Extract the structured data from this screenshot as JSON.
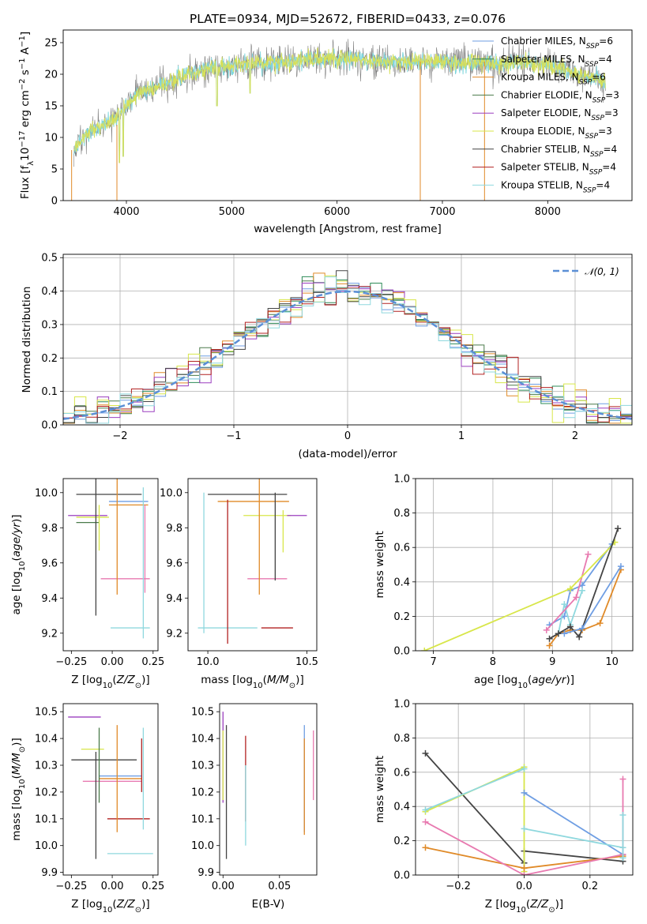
{
  "figure": {
    "title": "PLATE=0934, MJD=52672, FIBERID=0433, z=0.076"
  },
  "models": [
    {
      "label": "Chabrier MILES, N_{SSP}=6",
      "color": "#6f9ee3"
    },
    {
      "label": "Salpeter MILES, N_{SSP}=4",
      "color": "#2d8b57"
    },
    {
      "label": "Kroupa MILES, N_{SSP}=6",
      "color": "#e08a28"
    },
    {
      "label": "Chabrier ELODIE, N_{SSP}=3",
      "color": "#4a7a4a"
    },
    {
      "label": "Salpeter ELODIE, N_{SSP}=3",
      "color": "#9b3fbf"
    },
    {
      "label": "Kroupa ELODIE, N_{SSP}=3",
      "color": "#d8e64a"
    },
    {
      "label": "Chabrier STELIB, N_{SSP}=4",
      "color": "#444444"
    },
    {
      "label": "Salpeter STELIB, N_{SSP}=4",
      "color": "#b22222"
    },
    {
      "label": "Kroupa STELIB, N_{SSP}=4",
      "color": "#8fd8de"
    }
  ],
  "chart_data": [
    {
      "id": "spectrum",
      "type": "line",
      "xlabel": "wavelength [Angstrom, rest frame]",
      "ylabel": "Flux [f_λ 10^{-17} erg cm^{-2} s^{-1} A^{-1}]",
      "xlim": [
        3400,
        8800
      ],
      "ylim": [
        0,
        27
      ],
      "xticks": [
        4000,
        5000,
        6000,
        7000,
        8000
      ],
      "yticks": [
        0,
        5,
        10,
        15,
        20,
        25
      ],
      "legend": "upper right",
      "anchors": [
        [
          3500,
          8
        ],
        [
          3650,
          11
        ],
        [
          3800,
          12
        ],
        [
          3950,
          14
        ],
        [
          4100,
          17
        ],
        [
          4300,
          18
        ],
        [
          4500,
          19.5
        ],
        [
          4800,
          21
        ],
        [
          5100,
          21.5
        ],
        [
          5500,
          22
        ],
        [
          6000,
          22.5
        ],
        [
          6500,
          22
        ],
        [
          7000,
          22
        ],
        [
          7400,
          21.5
        ],
        [
          7700,
          22
        ],
        [
          8000,
          21.5
        ],
        [
          8300,
          20
        ],
        [
          8550,
          19
        ]
      ],
      "series_colors": [
        "#808080",
        "#7fd6dc",
        "#d6e05a"
      ]
    },
    {
      "id": "residuals",
      "type": "histogram",
      "xlabel": "(data-model)/error",
      "ylabel": "Normed distribution",
      "xlim": [
        -2.5,
        2.5
      ],
      "ylim": [
        0,
        0.51
      ],
      "xticks": [
        -2,
        -1,
        0,
        1,
        2
      ],
      "yticks": [
        0.0,
        0.1,
        0.2,
        0.3,
        0.4,
        0.5
      ],
      "legend": "upper right",
      "reference_label": "𝒩(0, 1)",
      "reference_color": "#5b8fd6",
      "bin_width": 0.1,
      "grid": true
    },
    {
      "id": "age-vs-Z",
      "type": "errorbar",
      "xlabel": "Z [log10(Z/Z⊙)]",
      "ylabel": "age  [log10(age/yr)]",
      "xlim": [
        -0.3,
        0.28
      ],
      "ylim": [
        9.1,
        10.08
      ],
      "xticks": [
        -0.25,
        0.0,
        0.25
      ],
      "yticks": [
        9.2,
        9.4,
        9.6,
        9.8,
        10.0
      ],
      "points": [
        {
          "x": -0.02,
          "y": 9.99,
          "xerr": 0.2,
          "yerr": 0.0,
          "color": "#444444"
        },
        {
          "x": 0.1,
          "y": 9.95,
          "xerr": 0.12,
          "yerr": 0.0,
          "color": "#6f9ee3"
        },
        {
          "x": 0.1,
          "y": 9.93,
          "xerr": 0.12,
          "yerr": 0.0,
          "color": "#e08a28"
        },
        {
          "x": -0.15,
          "y": 9.87,
          "xerr": 0.12,
          "yerr": 0.0,
          "color": "#9b3fbf"
        },
        {
          "x": -0.12,
          "y": 9.86,
          "xerr": 0.1,
          "yerr": 0.0,
          "color": "#d8e64a"
        },
        {
          "x": -0.15,
          "y": 9.83,
          "xerr": 0.07,
          "yerr": 0.0,
          "color": "#4a7a4a"
        },
        {
          "x": 0.08,
          "y": 9.51,
          "xerr": 0.15,
          "yerr": 0.0,
          "color": "#e87ab0"
        },
        {
          "x": 0.11,
          "y": 9.23,
          "xerr": 0.12,
          "yerr": 0.0,
          "color": "#8fd8de"
        },
        {
          "x": -0.1,
          "y": 9.7,
          "xerr": 0.0,
          "yerr": 0.4,
          "color": "#444444"
        },
        {
          "x": 0.03,
          "y": 9.75,
          "xerr": 0.0,
          "yerr": 0.33,
          "color": "#e08a28"
        },
        {
          "x": 0.19,
          "y": 9.6,
          "xerr": 0.0,
          "yerr": 0.43,
          "color": "#8fd8de"
        },
        {
          "x": -0.08,
          "y": 9.8,
          "xerr": 0.0,
          "yerr": 0.13,
          "color": "#d8e64a"
        },
        {
          "x": 0.2,
          "y": 9.68,
          "xerr": 0.0,
          "yerr": 0.25,
          "color": "#e87ab0"
        }
      ]
    },
    {
      "id": "age-vs-mass",
      "type": "errorbar",
      "xlabel": "mass [log10(M/M⊙)]",
      "ylabel": "",
      "xlim": [
        9.9,
        10.55
      ],
      "ylim": [
        9.1,
        10.08
      ],
      "xticks": [
        10.0,
        10.5
      ],
      "yticks": [
        9.2,
        9.4,
        9.6,
        9.8,
        10.0
      ],
      "points": [
        {
          "x": 10.2,
          "y": 9.99,
          "xerr": 0.2,
          "yerr": 0.0,
          "color": "#444444"
        },
        {
          "x": 10.23,
          "y": 9.95,
          "xerr": 0.18,
          "yerr": 0.0,
          "color": "#e08a28"
        },
        {
          "x": 10.3,
          "y": 9.87,
          "xerr": 0.12,
          "yerr": 0.0,
          "color": "#d8e64a"
        },
        {
          "x": 10.45,
          "y": 9.87,
          "xerr": 0.05,
          "yerr": 0.0,
          "color": "#9b3fbf"
        },
        {
          "x": 10.3,
          "y": 9.51,
          "xerr": 0.1,
          "yerr": 0.0,
          "color": "#e87ab0"
        },
        {
          "x": 10.1,
          "y": 9.23,
          "xerr": 0.15,
          "yerr": 0.0,
          "color": "#8fd8de"
        },
        {
          "x": 10.35,
          "y": 9.23,
          "xerr": 0.08,
          "yerr": 0.0,
          "color": "#b22222"
        },
        {
          "x": 9.98,
          "y": 9.6,
          "xerr": 0.0,
          "yerr": 0.4,
          "color": "#8fd8de"
        },
        {
          "x": 10.1,
          "y": 9.55,
          "xerr": 0.0,
          "yerr": 0.41,
          "color": "#b22222"
        },
        {
          "x": 10.26,
          "y": 9.75,
          "xerr": 0.0,
          "yerr": 0.33,
          "color": "#e08a28"
        },
        {
          "x": 10.34,
          "y": 9.75,
          "xerr": 0.0,
          "yerr": 0.25,
          "color": "#444444"
        },
        {
          "x": 10.38,
          "y": 9.78,
          "xerr": 0.0,
          "yerr": 0.12,
          "color": "#d8e64a"
        }
      ]
    },
    {
      "id": "weight-vs-age",
      "type": "line",
      "xlabel": "age  [log10(age/yr)]",
      "ylabel": "mass weight",
      "xlim": [
        6.7,
        10.35
      ],
      "ylim": [
        0,
        1.0
      ],
      "xticks": [
        7,
        8,
        9,
        10
      ],
      "yticks": [
        0.0,
        0.2,
        0.4,
        0.6,
        0.8,
        1.0
      ],
      "grid": true,
      "series": [
        {
          "color": "#6f9ee3",
          "x": [
            8.95,
            9.2,
            9.3,
            9.5,
            10.0
          ],
          "y": [
            0.15,
            0.2,
            0.35,
            0.38,
            0.62
          ]
        },
        {
          "color": "#e08a28",
          "x": [
            8.95,
            9.1,
            9.3,
            9.5,
            9.8,
            10.15
          ],
          "y": [
            0.03,
            0.1,
            0.12,
            0.12,
            0.16,
            0.47
          ]
        },
        {
          "color": "#8fd8de",
          "x": [
            9.1,
            9.2,
            9.3,
            9.5
          ],
          "y": [
            0.1,
            0.27,
            0.15,
            0.35
          ]
        },
        {
          "color": "#e87ab0",
          "x": [
            8.9,
            9.4,
            9.6
          ],
          "y": [
            0.12,
            0.31,
            0.56
          ]
        },
        {
          "color": "#d8e64a",
          "x": [
            6.85,
            9.3,
            10.05
          ],
          "y": [
            0.0,
            0.36,
            0.63
          ]
        },
        {
          "color": "#444444",
          "x": [
            8.95,
            9.1,
            9.3,
            9.45,
            10.1
          ],
          "y": [
            0.07,
            0.1,
            0.14,
            0.08,
            0.71
          ]
        },
        {
          "color": "#6f9ee3",
          "x": [
            9.2,
            9.5,
            10.15
          ],
          "y": [
            0.1,
            0.13,
            0.49
          ]
        }
      ]
    },
    {
      "id": "mass-vs-Z",
      "type": "errorbar",
      "xlabel": "Z [log10(Z/Z⊙)]",
      "ylabel": "mass [log10(M/M⊙)]",
      "xlim": [
        -0.3,
        0.28
      ],
      "ylim": [
        9.89,
        10.53
      ],
      "xticks": [
        -0.25,
        0.0,
        0.25
      ],
      "yticks": [
        9.9,
        10.0,
        10.1,
        10.2,
        10.3,
        10.4,
        10.5
      ],
      "points": [
        {
          "x": -0.17,
          "y": 10.48,
          "xerr": 0.1,
          "yerr": 0.0,
          "color": "#9b3fbf"
        },
        {
          "x": -0.12,
          "y": 10.36,
          "xerr": 0.07,
          "yerr": 0.0,
          "color": "#d8e64a"
        },
        {
          "x": -0.05,
          "y": 10.32,
          "xerr": 0.2,
          "yerr": 0.0,
          "color": "#444444"
        },
        {
          "x": 0.05,
          "y": 10.26,
          "xerr": 0.13,
          "yerr": 0.0,
          "color": "#6f9ee3"
        },
        {
          "x": 0.05,
          "y": 10.25,
          "xerr": 0.13,
          "yerr": 0.0,
          "color": "#e08a28"
        },
        {
          "x": 0.0,
          "y": 10.24,
          "xerr": 0.18,
          "yerr": 0.0,
          "color": "#e87ab0"
        },
        {
          "x": 0.1,
          "y": 10.1,
          "xerr": 0.13,
          "yerr": 0.0,
          "color": "#b22222"
        },
        {
          "x": 0.11,
          "y": 9.97,
          "xerr": 0.14,
          "yerr": 0.0,
          "color": "#8fd8de"
        },
        {
          "x": -0.1,
          "y": 10.15,
          "xerr": 0.0,
          "yerr": 0.2,
          "color": "#444444"
        },
        {
          "x": -0.08,
          "y": 10.3,
          "xerr": 0.0,
          "yerr": 0.14,
          "color": "#4a7a4a"
        },
        {
          "x": 0.03,
          "y": 10.25,
          "xerr": 0.0,
          "yerr": 0.2,
          "color": "#e08a28"
        },
        {
          "x": 0.19,
          "y": 10.25,
          "xerr": 0.0,
          "yerr": 0.19,
          "color": "#8fd8de"
        },
        {
          "x": 0.18,
          "y": 10.3,
          "xerr": 0.0,
          "yerr": 0.1,
          "color": "#b22222"
        }
      ]
    },
    {
      "id": "mass-vs-EBV",
      "type": "errorbar",
      "xlabel": "E(B-V)",
      "ylabel": "",
      "xlim": [
        -0.003,
        0.083
      ],
      "ylim": [
        9.89,
        10.53
      ],
      "xticks": [
        0.0,
        0.05
      ],
      "yticks": [
        9.9,
        10.0,
        10.1,
        10.2,
        10.3,
        10.4,
        10.5
      ],
      "points": [
        {
          "x": 0.0,
          "y": 10.33,
          "xerr": 0.0,
          "yerr": 0.17,
          "color": "#9b3fbf"
        },
        {
          "x": 0.0,
          "y": 10.3,
          "xerr": 0.0,
          "yerr": 0.13,
          "color": "#d8e64a"
        },
        {
          "x": 0.003,
          "y": 10.2,
          "xerr": 0.0,
          "yerr": 0.25,
          "color": "#444444"
        },
        {
          "x": 0.02,
          "y": 10.25,
          "xerr": 0.0,
          "yerr": 0.16,
          "color": "#b22222"
        },
        {
          "x": 0.02,
          "y": 10.15,
          "xerr": 0.0,
          "yerr": 0.15,
          "color": "#8fd8de"
        },
        {
          "x": 0.072,
          "y": 10.25,
          "xerr": 0.0,
          "yerr": 0.2,
          "color": "#6f9ee3"
        },
        {
          "x": 0.072,
          "y": 10.22,
          "xerr": 0.0,
          "yerr": 0.18,
          "color": "#e08a28"
        },
        {
          "x": 0.08,
          "y": 10.3,
          "xerr": 0.0,
          "yerr": 0.13,
          "color": "#e87ab0"
        }
      ]
    },
    {
      "id": "weight-vs-Z",
      "type": "line",
      "xlabel": "Z [log10(Z/Z⊙)]",
      "ylabel": "mass weight",
      "xlim": [
        -0.33,
        0.33
      ],
      "ylim": [
        0,
        1.0
      ],
      "xticks": [
        -0.2,
        0.0,
        0.2
      ],
      "yticks": [
        0.0,
        0.2,
        0.4,
        0.6,
        0.8,
        1.0
      ],
      "grid": true,
      "series": [
        {
          "color": "#444444",
          "x": [
            -0.3,
            0.0,
            0.0,
            0.3
          ],
          "y": [
            0.71,
            0.07,
            0.14,
            0.08
          ]
        },
        {
          "color": "#d8e64a",
          "x": [
            -0.3,
            0.0,
            0.0
          ],
          "y": [
            0.37,
            0.63,
            0.02
          ]
        },
        {
          "color": "#8fd8de",
          "x": [
            -0.3,
            0.0
          ],
          "y": [
            0.38,
            0.62
          ]
        },
        {
          "color": "#e08a28",
          "x": [
            -0.3,
            0.0,
            0.3
          ],
          "y": [
            0.16,
            0.04,
            0.11
          ]
        },
        {
          "color": "#6f9ee3",
          "x": [
            0.0,
            0.3
          ],
          "y": [
            0.48,
            0.12
          ]
        },
        {
          "color": "#8fd8de",
          "x": [
            0.0,
            0.3
          ],
          "y": [
            0.27,
            0.16
          ]
        },
        {
          "color": "#e87ab0",
          "x": [
            -0.3,
            0.0,
            0.3,
            0.3
          ],
          "y": [
            0.31,
            0.0,
            0.12,
            0.56
          ]
        },
        {
          "color": "#8fd8de",
          "x": [
            0.3,
            0.3
          ],
          "y": [
            0.35,
            0.1
          ]
        }
      ]
    }
  ]
}
